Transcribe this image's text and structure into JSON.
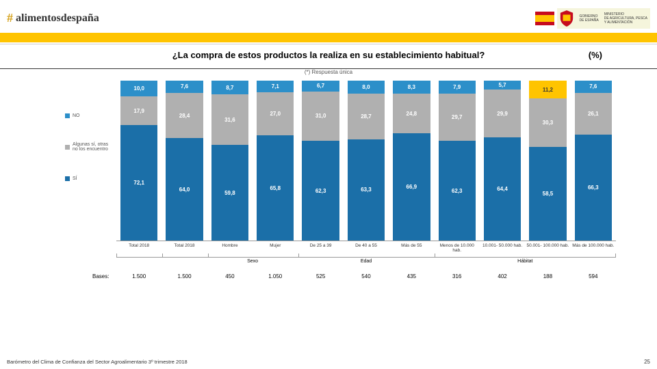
{
  "header": {
    "brand": "alimentosdespaña",
    "gov1": "GOBIERNO",
    "gov2": "DE ESPAÑA",
    "min1": "MINISTERIO",
    "min2": "DE AGRICULTURA, PESCA",
    "min3": "Y ALIMENTACIÓN"
  },
  "title": "¿La compra de estos productos la realiza en su establecimiento habitual?",
  "pct": "(%)",
  "subtitle": "(*) Respuesta única",
  "legend": {
    "items": [
      {
        "label": "NO",
        "color": "#2c8fc9"
      },
      {
        "label": "Algunas sí, otras no los encuentro",
        "color": "#b0b0b0"
      },
      {
        "label": "SÍ",
        "color": "#1b6fa8"
      }
    ]
  },
  "chart": {
    "type": "stacked-bar-100",
    "series_colors": {
      "no": "#2c8fc9",
      "some": "#b0b0b0",
      "si": "#1b6fa8"
    },
    "highlight_color": "#ffc400",
    "text_color": "#ffffff",
    "columns": [
      {
        "si": 72.1,
        "some": 17.9,
        "no": 10.0,
        "no_hl": false
      },
      {
        "si": 64.0,
        "some": 28.4,
        "no": 7.6,
        "no_hl": false
      },
      {
        "si": 59.8,
        "some": 31.6,
        "no": 8.7,
        "no_hl": false
      },
      {
        "si": 65.8,
        "some": 27.0,
        "no": 7.1,
        "no_hl": false
      },
      {
        "si": 62.3,
        "some": 31.0,
        "no": 6.7,
        "no_hl": false
      },
      {
        "si": 63.3,
        "some": 28.7,
        "no": 8.0,
        "no_hl": false
      },
      {
        "si": 66.9,
        "some": 24.8,
        "no": 8.3,
        "no_hl": false
      },
      {
        "si": 62.3,
        "some": 29.7,
        "no": 7.9,
        "no_hl": false
      },
      {
        "si": 64.4,
        "some": 29.9,
        "no": 5.7,
        "no_hl": false
      },
      {
        "si": 58.5,
        "some": 30.3,
        "no": 11.2,
        "no_hl": true
      },
      {
        "si": 66.3,
        "some": 26.1,
        "no": 7.6,
        "no_hl": false
      }
    ],
    "xlabels": [
      "Total 2018",
      "Total 2018",
      "Hombre",
      "Mujer",
      "De 25 a 39",
      "De 40 a 55",
      "Más de 55",
      "Menos de 10.000 hab.",
      "10.001- 50.000 hab.",
      "50.001- 100.000 hab.",
      "Más de 100.000 hab."
    ],
    "groups": [
      {
        "label": "",
        "span": 1
      },
      {
        "label": "",
        "span": 1
      },
      {
        "label": "Sexo",
        "span": 2
      },
      {
        "label": "Edad",
        "span": 3
      },
      {
        "label": "Hábitat",
        "span": 4
      }
    ],
    "bases_label": "Bases:",
    "bases": [
      "1.500",
      "1.500",
      "450",
      "1.050",
      "525",
      "540",
      "435",
      "316",
      "402",
      "188",
      "594"
    ]
  },
  "footer": {
    "text": "Barómetro del Clima de Confianza del Sector Agroalimentario 3º trimestre 2018",
    "page": "25"
  }
}
